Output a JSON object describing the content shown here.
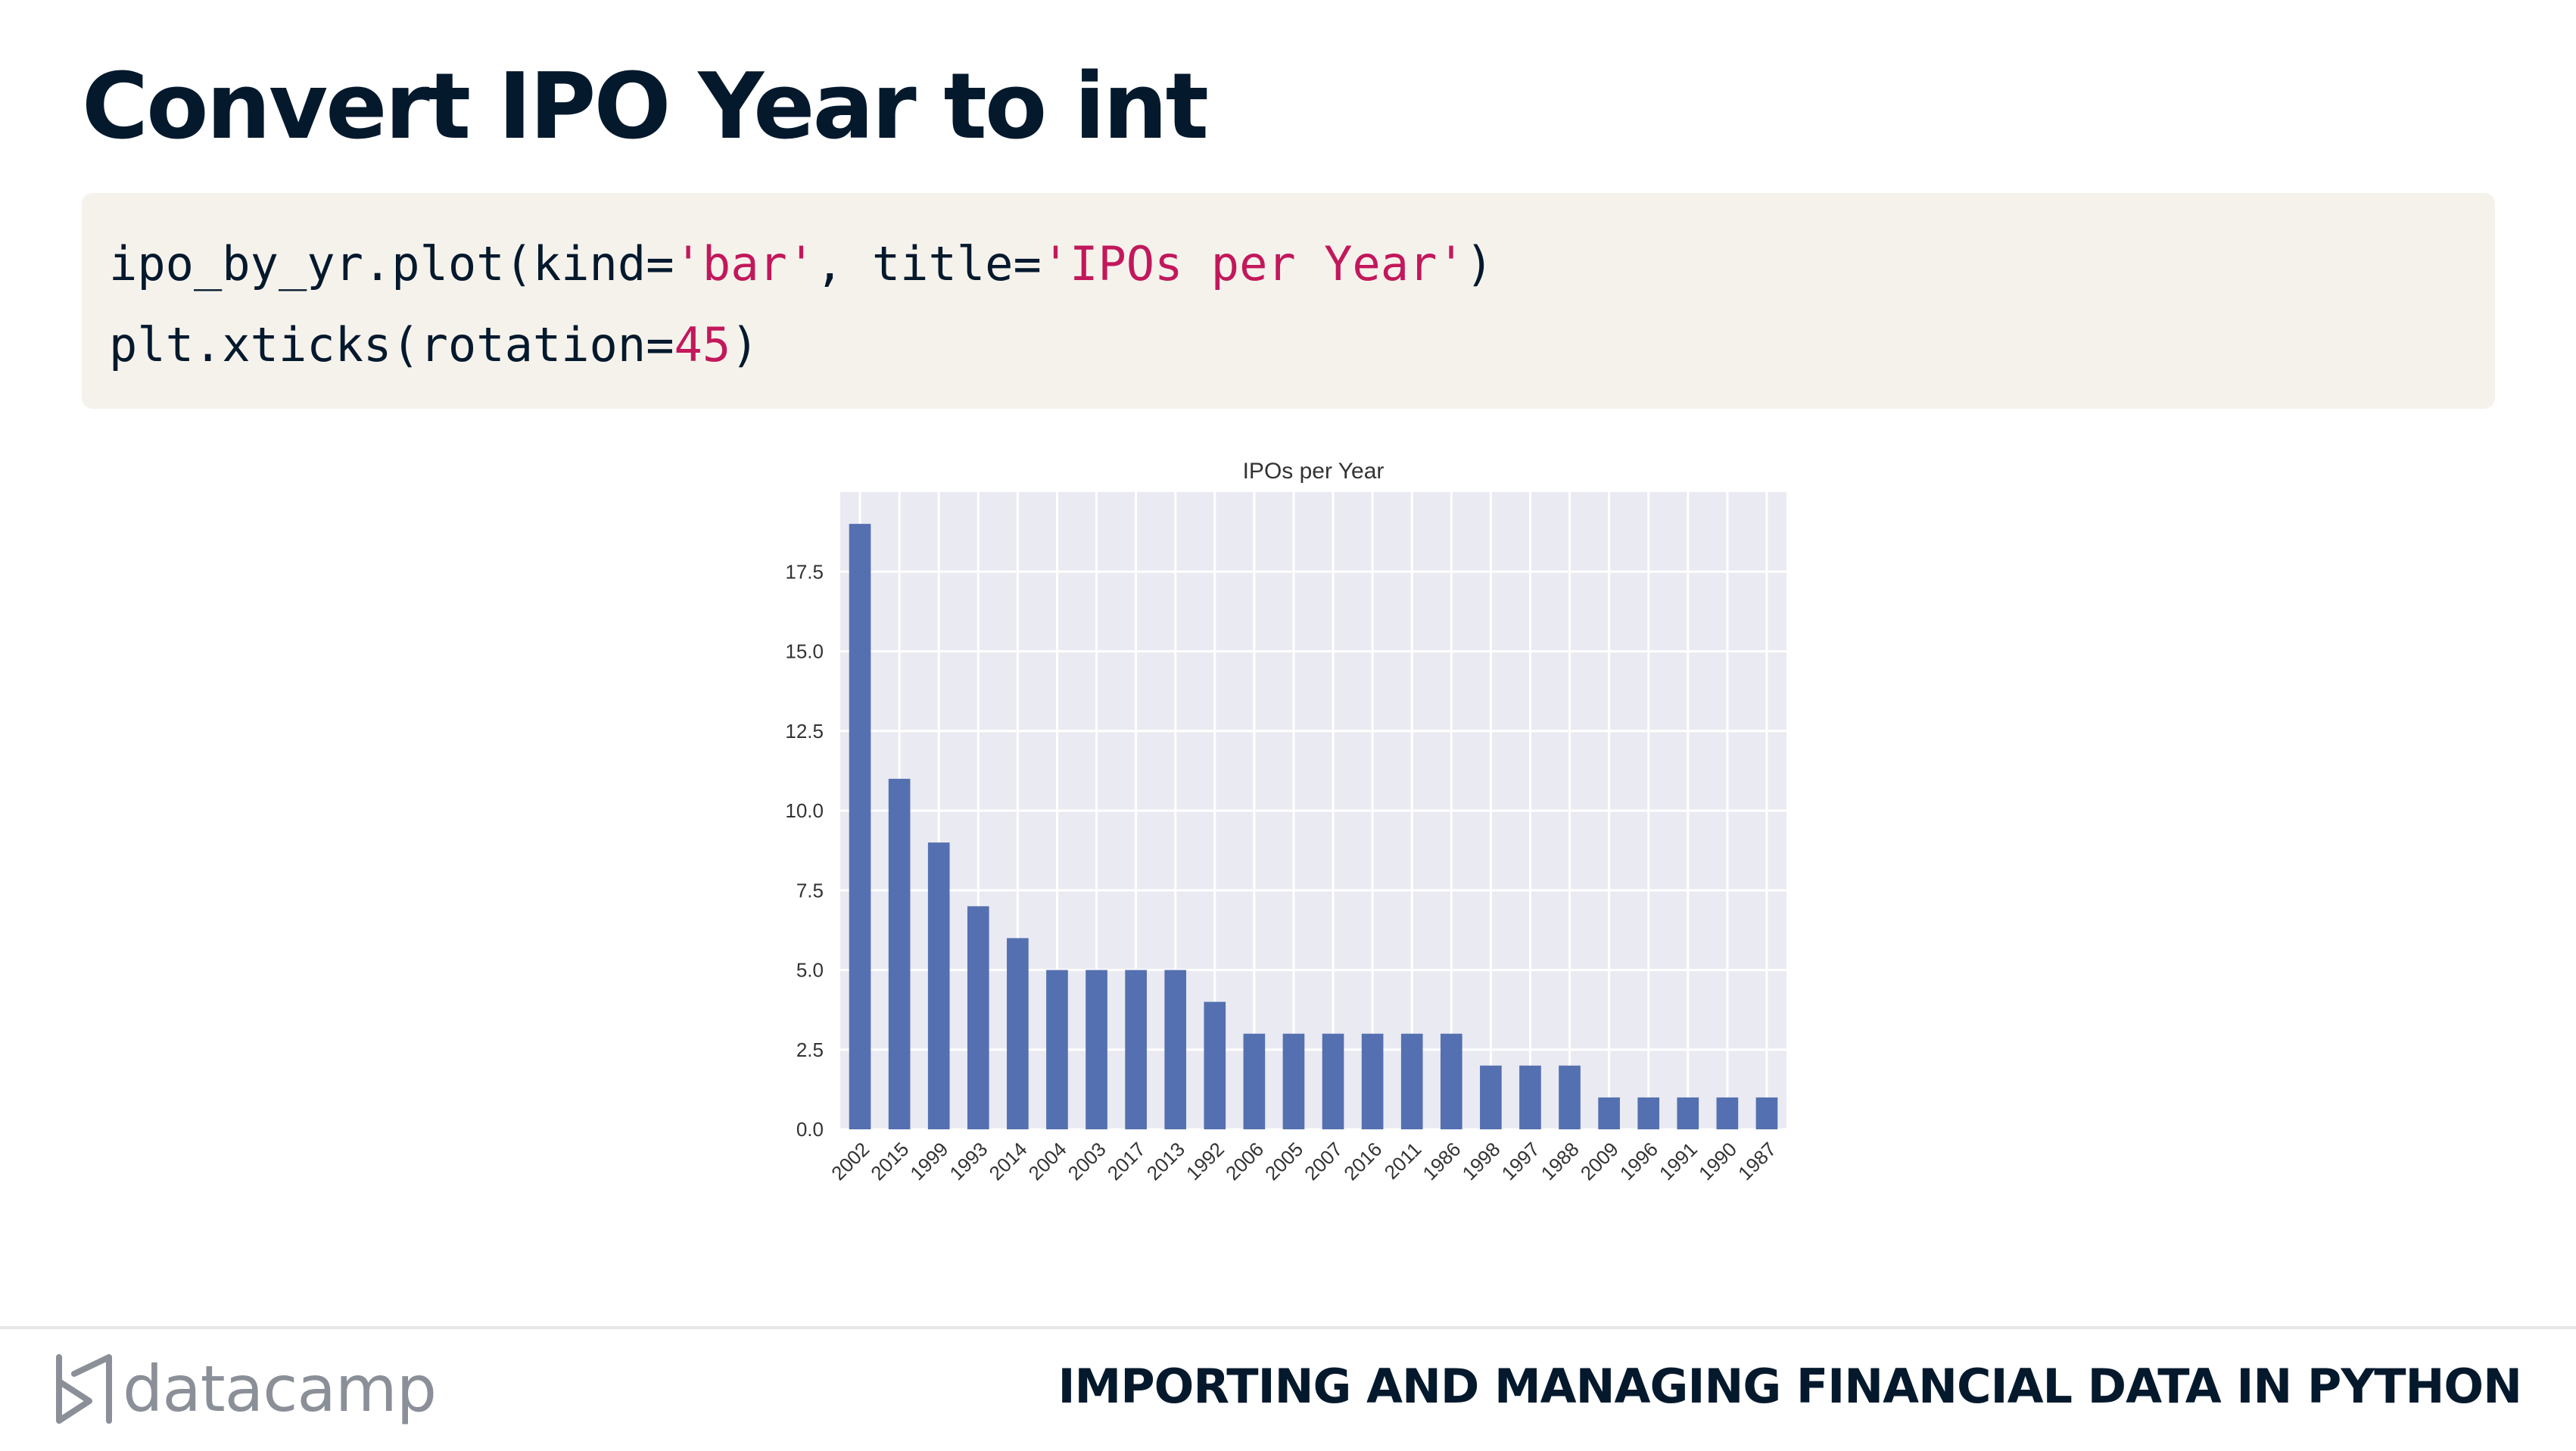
{
  "slide": {
    "title": "Convert IPO Year to int",
    "footer_course": "IMPORTING AND MANAGING FINANCIAL DATA IN PYTHON",
    "logo_text": "datacamp",
    "logo_icon": "datacamp-logo-icon"
  },
  "code": {
    "line1": {
      "p1": "ipo_by_yr.plot(kind=",
      "s1": "'bar'",
      "p2": ", title=",
      "s2": "'IPOs per Year'",
      "p3": ")"
    },
    "line2": {
      "p1": "plt.xticks(rotation=",
      "n1": "45",
      "p2": ")"
    }
  },
  "colors": {
    "bar": "#5470b0",
    "plot_bg": "#eaeaf2",
    "grid": "#ffffff",
    "code_string": "#c2185b"
  },
  "chart_data": {
    "type": "bar",
    "title": "IPOs per Year",
    "xlabel": "",
    "ylabel": "",
    "categories": [
      "2002",
      "2015",
      "1999",
      "1993",
      "2014",
      "2004",
      "2003",
      "2017",
      "2013",
      "1992",
      "2006",
      "2005",
      "2007",
      "2016",
      "2011",
      "1986",
      "1998",
      "1997",
      "1988",
      "2009",
      "1996",
      "1991",
      "1990",
      "1987"
    ],
    "values": [
      19,
      11,
      9,
      7,
      6,
      5,
      5,
      5,
      5,
      4,
      3,
      3,
      3,
      3,
      3,
      3,
      2,
      2,
      2,
      1,
      1,
      1,
      1,
      1
    ],
    "ylim": [
      0,
      20
    ],
    "yticks": [
      "0.0",
      "2.5",
      "5.0",
      "7.5",
      "10.0",
      "12.5",
      "15.0",
      "17.5"
    ],
    "xtick_rotation": 45,
    "grid": true,
    "legend": "none"
  }
}
